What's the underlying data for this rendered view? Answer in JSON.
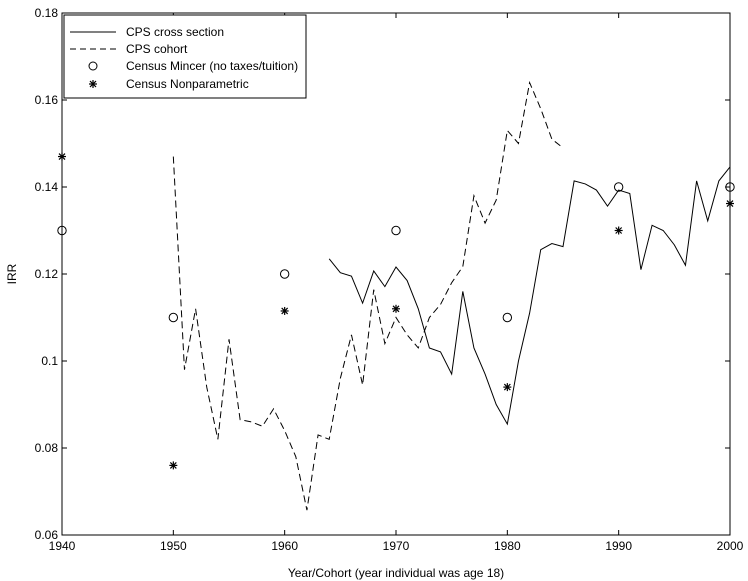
{
  "chart_data": {
    "type": "line",
    "xlabel": "Year/Cohort (year individual was age 18)",
    "ylabel": "IRR",
    "xlim": [
      1940,
      2000
    ],
    "ylim": [
      0.06,
      0.18
    ],
    "grid": false,
    "legend_position": "top-left",
    "x_ticks": [
      "1940",
      "1950",
      "1960",
      "1970",
      "1980",
      "1990",
      "2000"
    ],
    "y_ticks": [
      "0.06",
      "0.08",
      "0.1",
      "0.12",
      "0.14",
      "0.16",
      "0.18"
    ],
    "series": [
      {
        "name": "CPS cross section",
        "style": "solid",
        "points": [
          [
            1964,
            0.1235
          ],
          [
            1965,
            0.1203
          ],
          [
            1966,
            0.1195
          ],
          [
            1967,
            0.1133
          ],
          [
            1968,
            0.1207
          ],
          [
            1969,
            0.1171
          ],
          [
            1970,
            0.1216
          ],
          [
            1971,
            0.1185
          ],
          [
            1972,
            0.112
          ],
          [
            1973,
            0.103
          ],
          [
            1974,
            0.1021
          ],
          [
            1975,
            0.097
          ],
          [
            1976,
            0.116
          ],
          [
            1977,
            0.103
          ],
          [
            1978,
            0.097
          ],
          [
            1979,
            0.09
          ],
          [
            1980,
            0.0855
          ],
          [
            1981,
            0.1
          ],
          [
            1982,
            0.111
          ],
          [
            1983,
            0.1256
          ],
          [
            1984,
            0.127
          ],
          [
            1985,
            0.1263
          ],
          [
            1986,
            0.1414
          ],
          [
            1987,
            0.1407
          ],
          [
            1988,
            0.1393
          ],
          [
            1989,
            0.1356
          ],
          [
            1990,
            0.1393
          ],
          [
            1991,
            0.1385
          ],
          [
            1992,
            0.121
          ],
          [
            1993,
            0.1312
          ],
          [
            1994,
            0.13
          ],
          [
            1995,
            0.1267
          ],
          [
            1996,
            0.122
          ],
          [
            1997,
            0.1414
          ],
          [
            1998,
            0.1322
          ],
          [
            1999,
            0.1414
          ],
          [
            2000,
            0.1446
          ]
        ]
      },
      {
        "name": "CPS cohort",
        "style": "dashed",
        "points": [
          [
            1950,
            0.147
          ],
          [
            1951,
            0.098
          ],
          [
            1952,
            0.112
          ],
          [
            1953,
            0.094
          ],
          [
            1954,
            0.082
          ],
          [
            1955,
            0.105
          ],
          [
            1956,
            0.0865
          ],
          [
            1957,
            0.086
          ],
          [
            1958,
            0.085
          ],
          [
            1959,
            0.089
          ],
          [
            1960,
            0.084
          ],
          [
            1961,
            0.078
          ],
          [
            1962,
            0.0657
          ],
          [
            1963,
            0.083
          ],
          [
            1964,
            0.082
          ],
          [
            1965,
            0.096
          ],
          [
            1966,
            0.106
          ],
          [
            1967,
            0.0945
          ],
          [
            1968,
            0.1164
          ],
          [
            1969,
            0.104
          ],
          [
            1970,
            0.11
          ],
          [
            1971,
            0.106
          ],
          [
            1972,
            0.103
          ],
          [
            1973,
            0.11
          ],
          [
            1974,
            0.113
          ],
          [
            1975,
            0.118
          ],
          [
            1976,
            0.1217
          ],
          [
            1977,
            0.138
          ],
          [
            1978,
            0.1317
          ],
          [
            1979,
            0.137
          ],
          [
            1980,
            0.153
          ],
          [
            1981,
            0.15
          ],
          [
            1982,
            0.164
          ],
          [
            1983,
            0.158
          ],
          [
            1984,
            0.151
          ],
          [
            1985,
            0.149
          ]
        ]
      },
      {
        "name": "Census Mincer (no taxes/tuition)",
        "style": "marker-circle",
        "points": [
          [
            1940,
            0.13
          ],
          [
            1950,
            0.11
          ],
          [
            1960,
            0.12
          ],
          [
            1970,
            0.13
          ],
          [
            1980,
            0.11
          ],
          [
            1990,
            0.14
          ],
          [
            2000,
            0.14
          ]
        ]
      },
      {
        "name": "Census Nonparametric",
        "style": "marker-star",
        "points": [
          [
            1940,
            0.147
          ],
          [
            1950,
            0.076
          ],
          [
            1960,
            0.1115
          ],
          [
            1970,
            0.112
          ],
          [
            1980,
            0.094
          ],
          [
            1990,
            0.13
          ],
          [
            2000,
            0.1362
          ]
        ]
      }
    ]
  }
}
